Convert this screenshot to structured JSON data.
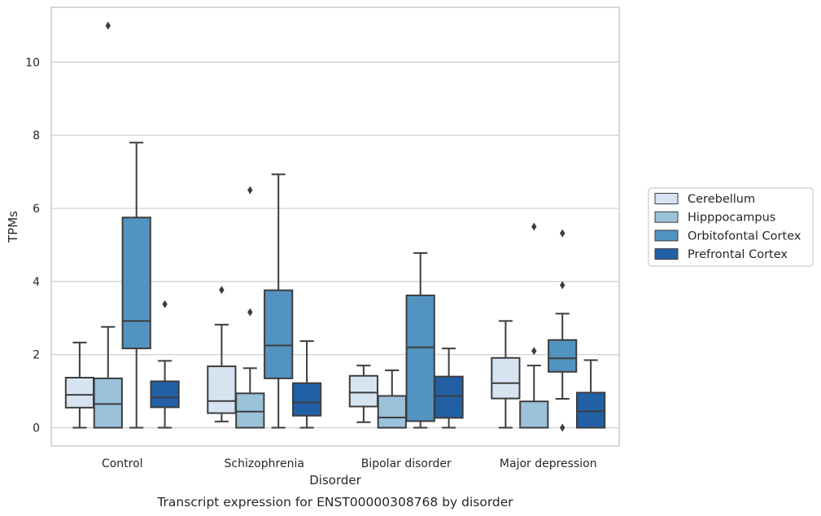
{
  "chart_data": {
    "type": "box",
    "title": "",
    "caption": "Transcript expression for ENST00000308768 by disorder",
    "xlabel": "Disorder",
    "ylabel": "TPMs",
    "ylim": [
      -0.5,
      11.5
    ],
    "yticks": [
      0,
      2,
      4,
      6,
      8,
      10
    ],
    "grid": "horizontal",
    "legend_position": "right",
    "categories": [
      "Control",
      "Schizophrenia",
      "Bipolar disorder",
      "Major depression"
    ],
    "series": [
      {
        "name": "Cerebellum",
        "color": "#d6e4f2",
        "boxes": [
          {
            "whisker_low": 0.0,
            "q1": 0.55,
            "median": 0.9,
            "q3": 1.37,
            "whisker_high": 2.33,
            "outliers": []
          },
          {
            "whisker_low": 0.17,
            "q1": 0.4,
            "median": 0.73,
            "q3": 1.68,
            "whisker_high": 2.82,
            "outliers": [
              3.77
            ]
          },
          {
            "whisker_low": 0.15,
            "q1": 0.58,
            "median": 0.96,
            "q3": 1.42,
            "whisker_high": 1.7,
            "outliers": []
          },
          {
            "whisker_low": 0.0,
            "q1": 0.8,
            "median": 1.22,
            "q3": 1.91,
            "whisker_high": 2.92,
            "outliers": []
          }
        ]
      },
      {
        "name": "Hipppocampus",
        "color": "#9ac2da",
        "boxes": [
          {
            "whisker_low": 0.0,
            "q1": 0.0,
            "median": 0.65,
            "q3": 1.35,
            "whisker_high": 2.76,
            "outliers": [
              11.0
            ]
          },
          {
            "whisker_low": 0.0,
            "q1": 0.0,
            "median": 0.44,
            "q3": 0.94,
            "whisker_high": 1.63,
            "outliers": [
              3.16,
              6.5
            ]
          },
          {
            "whisker_low": 0.0,
            "q1": 0.0,
            "median": 0.28,
            "q3": 0.87,
            "whisker_high": 1.57,
            "outliers": []
          },
          {
            "whisker_low": 0.0,
            "q1": 0.0,
            "median": 0.0,
            "q3": 0.72,
            "whisker_high": 1.7,
            "outliers": [
              2.1,
              5.5
            ]
          }
        ]
      },
      {
        "name": "Orbitofontal Cortex",
        "color": "#5293c2",
        "boxes": [
          {
            "whisker_low": 0.0,
            "q1": 2.17,
            "median": 2.92,
            "q3": 5.75,
            "whisker_high": 7.8,
            "outliers": []
          },
          {
            "whisker_low": 0.0,
            "q1": 1.35,
            "median": 2.25,
            "q3": 3.76,
            "whisker_high": 6.93,
            "outliers": []
          },
          {
            "whisker_low": 0.0,
            "q1": 0.18,
            "median": 2.2,
            "q3": 3.62,
            "whisker_high": 4.78,
            "outliers": []
          },
          {
            "whisker_low": 0.79,
            "q1": 1.53,
            "median": 1.9,
            "q3": 2.4,
            "whisker_high": 3.12,
            "outliers": [
              0.0,
              3.9,
              5.32
            ]
          }
        ]
      },
      {
        "name": "Prefrontal Cortex",
        "color": "#2260a6",
        "boxes": [
          {
            "whisker_low": 0.0,
            "q1": 0.56,
            "median": 0.83,
            "q3": 1.27,
            "whisker_high": 1.83,
            "outliers": [
              3.38
            ]
          },
          {
            "whisker_low": 0.0,
            "q1": 0.33,
            "median": 0.69,
            "q3": 1.22,
            "whisker_high": 2.37,
            "outliers": []
          },
          {
            "whisker_low": 0.0,
            "q1": 0.27,
            "median": 0.87,
            "q3": 1.4,
            "whisker_high": 2.17,
            "outliers": []
          },
          {
            "whisker_low": 0.0,
            "q1": 0.0,
            "median": 0.45,
            "q3": 0.96,
            "whisker_high": 1.85,
            "outliers": []
          }
        ]
      }
    ]
  }
}
